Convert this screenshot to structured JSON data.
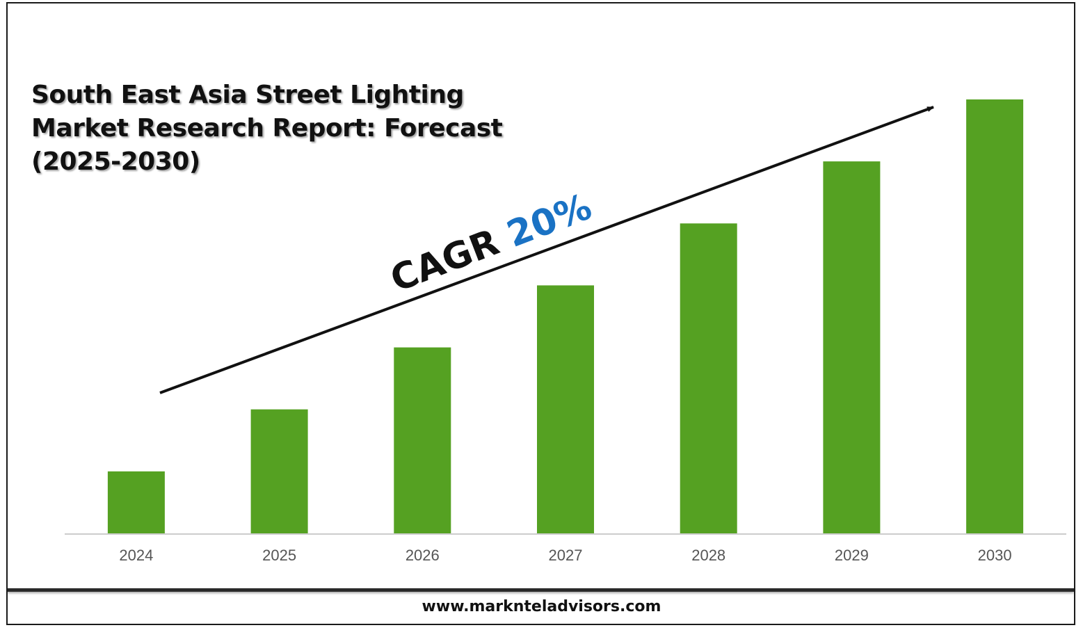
{
  "title": "South East Asia Street Lighting Market Research Report: Forecast (2025-2030)",
  "cagr": {
    "label": "CAGR",
    "value": "20%"
  },
  "website": "www.marknteladvisors.com",
  "colors": {
    "bar": "#55a122",
    "accent": "#1a72c4",
    "axis": "#cccccc"
  },
  "chart_data": {
    "type": "bar",
    "title": "South East Asia Street Lighting Market Research Report: Forecast (2025-2030)",
    "categories": [
      "2024",
      "2025",
      "2026",
      "2027",
      "2028",
      "2029",
      "2030"
    ],
    "values": [
      1.0,
      2.0,
      3.0,
      4.0,
      5.0,
      6.0,
      7.0
    ],
    "ylim": [
      0,
      7.0
    ],
    "xlabel": "",
    "ylabel": "",
    "grid": false,
    "annotations": [
      "CAGR 20%"
    ]
  }
}
